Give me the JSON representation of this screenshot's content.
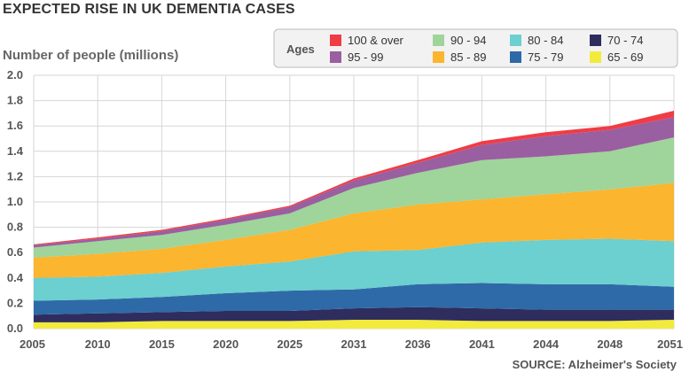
{
  "chart_data": {
    "type": "area",
    "stacked": true,
    "title": "EXPECTED RISE IN UK DEMENTIA CASES",
    "ylabel": "Number of people (millions)",
    "source": "SOURCE: Alzheimer's Society",
    "legend_title": "Ages",
    "legend_position": "top-right",
    "grid": true,
    "xlim": [
      2005,
      2051
    ],
    "ylim": [
      0,
      2.0
    ],
    "x_ticks": [
      "2005",
      "2010",
      "2015",
      "2020",
      "2025",
      "2031",
      "2036",
      "2041",
      "2044",
      "2048",
      "2051"
    ],
    "y_ticks": [
      "0.0",
      "0.2",
      "0.4",
      "0.6",
      "0.8",
      "1.0",
      "1.2",
      "1.4",
      "1.6",
      "1.8",
      "2.0"
    ],
    "x": [
      "2005",
      "2010",
      "2015",
      "2020",
      "2025",
      "2031",
      "2036",
      "2041",
      "2044",
      "2048",
      "2051"
    ],
    "series": [
      {
        "name": "65 - 69",
        "color": "#f2ea3c",
        "values": [
          0.05,
          0.05,
          0.06,
          0.06,
          0.06,
          0.07,
          0.07,
          0.06,
          0.06,
          0.06,
          0.07
        ]
      },
      {
        "name": "70 - 74",
        "color": "#2e2d5e",
        "values": [
          0.06,
          0.07,
          0.07,
          0.08,
          0.08,
          0.09,
          0.1,
          0.1,
          0.09,
          0.09,
          0.08
        ]
      },
      {
        "name": "75 - 79",
        "color": "#2f6aa8",
        "values": [
          0.11,
          0.11,
          0.12,
          0.14,
          0.16,
          0.15,
          0.18,
          0.2,
          0.2,
          0.2,
          0.18
        ]
      },
      {
        "name": "80 - 84",
        "color": "#6ccfd0",
        "values": [
          0.18,
          0.18,
          0.19,
          0.21,
          0.23,
          0.3,
          0.27,
          0.32,
          0.35,
          0.36,
          0.36
        ]
      },
      {
        "name": "85 - 89",
        "color": "#fbb52e",
        "values": [
          0.16,
          0.18,
          0.19,
          0.21,
          0.25,
          0.3,
          0.36,
          0.34,
          0.36,
          0.39,
          0.46
        ]
      },
      {
        "name": "90 - 94",
        "color": "#9fd49b",
        "values": [
          0.08,
          0.1,
          0.11,
          0.12,
          0.13,
          0.2,
          0.25,
          0.31,
          0.3,
          0.3,
          0.36
        ]
      },
      {
        "name": "95 - 99",
        "color": "#9a5fa0",
        "values": [
          0.02,
          0.02,
          0.03,
          0.04,
          0.05,
          0.06,
          0.08,
          0.12,
          0.16,
          0.17,
          0.16
        ]
      },
      {
        "name": "100 & over",
        "color": "#f03c45",
        "values": [
          0.005,
          0.01,
          0.01,
          0.01,
          0.01,
          0.015,
          0.02,
          0.03,
          0.03,
          0.03,
          0.05
        ]
      }
    ],
    "legend_order": [
      "100 & over",
      "95 - 99",
      "90 - 94",
      "85 - 89",
      "80 - 84",
      "75 - 79",
      "70 - 74",
      "65 - 69"
    ]
  }
}
